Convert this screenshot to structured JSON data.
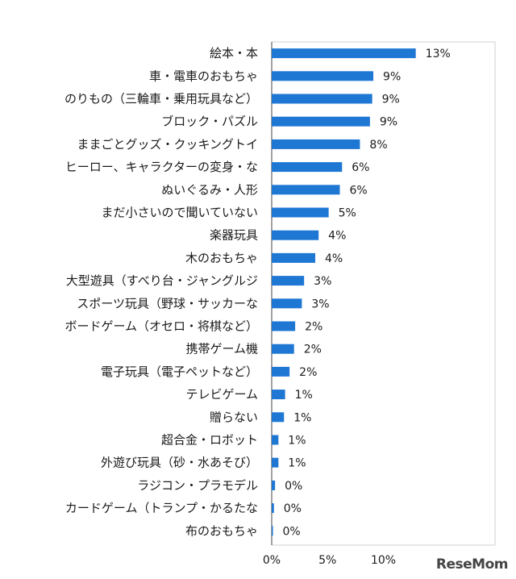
{
  "chart_data": {
    "type": "bar",
    "orientation": "horizontal",
    "categories": [
      "絵本・本",
      "車・電車のおもちゃ",
      "のりもの（三輪車・乗用玩具など）",
      "ブロック・パズル",
      "ままごとグッズ・クッキングトイ",
      "ヒーロー、キャラクターの変身・な",
      "ぬいぐるみ・人形",
      "まだ小さいので聞いていない",
      "楽器玩具",
      "木のおもちゃ",
      "大型遊具（すべり台・ジャングルジ",
      "スポーツ玩具（野球・サッカーな",
      "ボードゲーム（オセロ・将棋など）",
      "携帯ゲーム機",
      "電子玩具（電子ペットなど）",
      "テレビゲーム",
      "贈らない",
      "超合金・ロボット",
      "外遊び玩具（砂・水あそび）",
      "ラジコン・プラモデル",
      "カードゲーム（トランプ・かるたな",
      "布のおもちゃ"
    ],
    "values": [
      13,
      9,
      9,
      9,
      8,
      6,
      6,
      5,
      4,
      4,
      3,
      3,
      2,
      2,
      2,
      1,
      1,
      1,
      1,
      0,
      0,
      0
    ],
    "bar_values_exact": [
      12.9,
      9.1,
      9.0,
      8.8,
      7.9,
      6.3,
      6.1,
      5.1,
      4.2,
      3.9,
      2.9,
      2.7,
      2.1,
      2.0,
      1.6,
      1.2,
      1.1,
      0.6,
      0.6,
      0.3,
      0.2,
      0.1
    ],
    "data_labels": [
      "13%",
      "9%",
      "9%",
      "9%",
      "8%",
      "6%",
      "6%",
      "5%",
      "4%",
      "4%",
      "3%",
      "3%",
      "2%",
      "2%",
      "2%",
      "1%",
      "1%",
      "1%",
      "1%",
      "0%",
      "0%",
      "0%"
    ],
    "x_ticks": [
      "0%",
      "5%",
      "10%"
    ],
    "xlim": [
      0,
      20
    ],
    "bar_color": "#1f77d4",
    "grid": false,
    "legend": "none"
  },
  "watermark": "ReseMom"
}
